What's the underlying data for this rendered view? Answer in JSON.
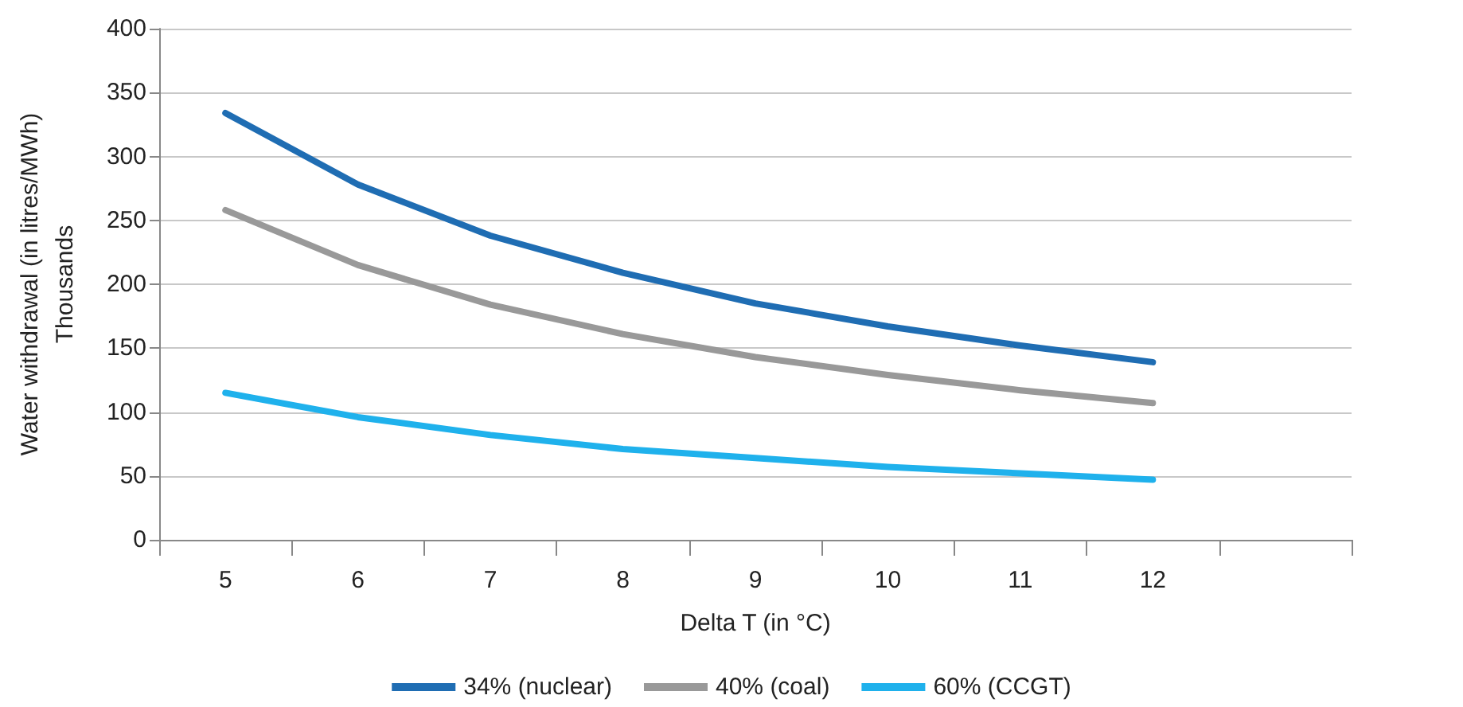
{
  "chart_data": {
    "type": "line",
    "xlabel": "Delta T (in °C)",
    "ylabel": "Water withdrawal (in litres/MWh)\nThousands",
    "categories": [
      "5",
      "6",
      "7",
      "8",
      "9",
      "10",
      "11",
      "12",
      null
    ],
    "series": [
      {
        "name": "34% (nuclear)",
        "color": "#1f6db3",
        "values": [
          334,
          278,
          238,
          209,
          185,
          167,
          152,
          139,
          null
        ]
      },
      {
        "name": "40% (coal)",
        "color": "#999999",
        "values": [
          258,
          215,
          184,
          161,
          143,
          129,
          117,
          107,
          null
        ]
      },
      {
        "name": "60% (CCGT)",
        "color": "#1fb1ec",
        "values": [
          115,
          96,
          82,
          71,
          64,
          57,
          52,
          47,
          null
        ]
      }
    ],
    "ylim": [
      0,
      400
    ],
    "yticks": [
      0,
      50,
      100,
      150,
      200,
      250,
      300,
      350,
      400
    ],
    "grid": "y",
    "legend": "bottom",
    "marker": "none",
    "line_style": "solid"
  }
}
